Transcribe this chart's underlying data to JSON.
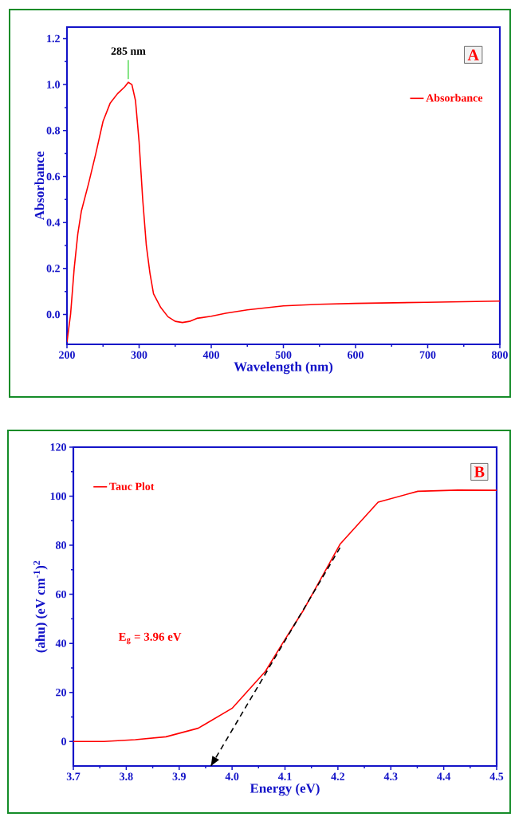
{
  "chart_data": [
    {
      "type": "line",
      "xlabel": "Wavelength (nm)",
      "ylabel": "Absorbance",
      "xlim": [
        200,
        800
      ],
      "ylim": [
        -0.13,
        1.25
      ],
      "xticks": [
        200,
        300,
        400,
        500,
        600,
        700,
        800
      ],
      "yticks": [
        {
          "value": 0,
          "label": "0.0"
        },
        0.2,
        0.4,
        0.6,
        0.8,
        {
          "value": 1,
          "label": "1.0"
        },
        1.2
      ],
      "legend": "top right",
      "series": [
        {
          "name": "Absorbance",
          "color": "#ff0000",
          "line_style": "solid",
          "x": [
            200,
            205,
            210,
            215,
            220,
            230,
            240,
            250,
            260,
            270,
            280,
            285,
            290,
            295,
            300,
            305,
            310,
            315,
            320,
            330,
            340,
            350,
            360,
            370,
            380,
            400,
            420,
            450,
            500,
            550,
            600,
            700,
            800
          ],
          "values": [
            -0.12,
            0.0,
            0.2,
            0.35,
            0.45,
            0.57,
            0.7,
            0.84,
            0.92,
            0.96,
            0.99,
            1.01,
            1.0,
            0.93,
            0.75,
            0.5,
            0.3,
            0.18,
            0.09,
            0.03,
            -0.01,
            -0.03,
            -0.035,
            -0.03,
            -0.017,
            -0.008,
            0.005,
            0.02,
            0.037,
            0.044,
            0.048,
            0.053,
            0.058
          ]
        }
      ],
      "annotations": [
        {
          "text": "285 nm",
          "x": 285,
          "y": 1.01
        },
        "A"
      ]
    },
    {
      "type": "line",
      "xlabel": "Energy (eV)",
      "ylabel": "(ahu) (eV cm$^{-1}$)$^{2}$",
      "xlim": [
        3.7,
        4.5
      ],
      "ylim": [
        -10,
        120
      ],
      "xticks": [
        3.7,
        3.8,
        3.9,
        {
          "value": 4.0,
          "label": "4.0"
        },
        4.1,
        4.2,
        4.3,
        4.4,
        4.5
      ],
      "yticks": [
        0,
        20,
        40,
        60,
        80,
        100,
        120
      ],
      "legend": "top left",
      "series": [
        {
          "name": "Tauc Plot",
          "color": "#ff0000",
          "line_style": "solid",
          "x": [
            3.7,
            3.758,
            3.817,
            3.875,
            3.936,
            4.0,
            4.063,
            4.097,
            4.134,
            4.204,
            4.276,
            4.351,
            4.427,
            4.5
          ],
          "values": [
            0,
            0,
            0.7,
            1.9,
            5.4,
            13.5,
            28.6,
            40.6,
            53.2,
            80.4,
            97.6,
            102,
            102.5,
            102.4
          ]
        },
        {
          "type": "line",
          "color": "#000000",
          "line_style": "dashed",
          "x": [
            4.204,
            3.96
          ],
          "values": [
            79,
            -10
          ]
        }
      ],
      "annotations": [
        "B",
        "E$_{g}$ = 3.96 eV"
      ]
    }
  ]
}
